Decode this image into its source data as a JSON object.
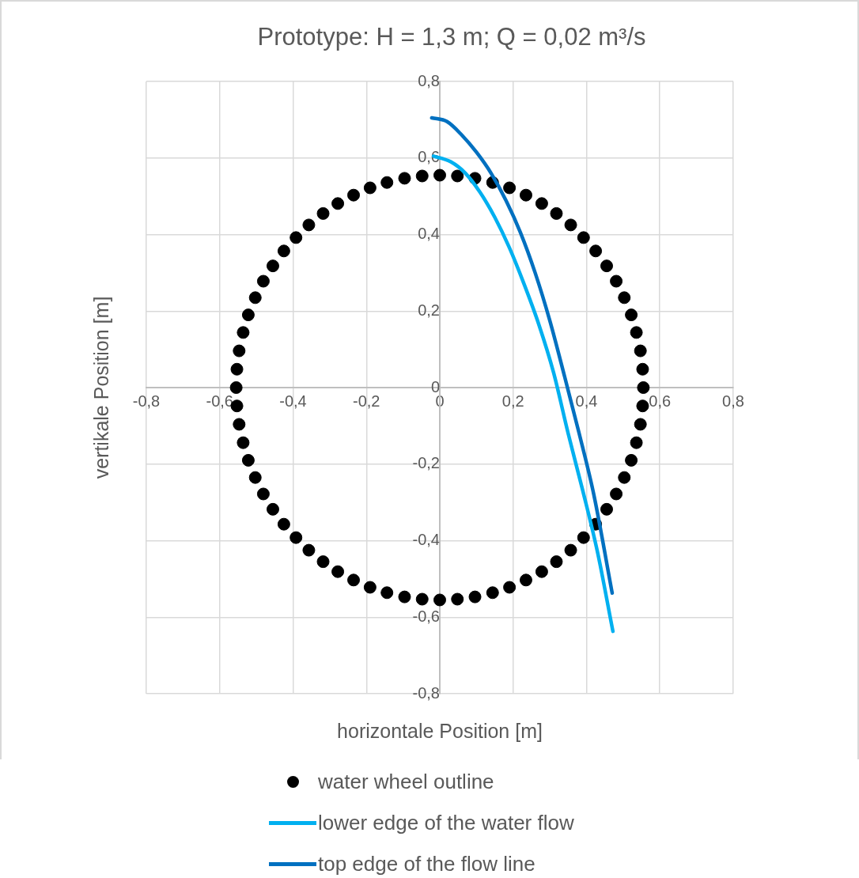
{
  "chart_data": {
    "type": "scatter",
    "title": "Prototype: H = 1,3 m; Q = 0,02 m³/s",
    "xlabel": "horizontale Position [m]",
    "ylabel": "vertikale Position [m]",
    "xlim": [
      -0.8,
      0.8
    ],
    "ylim": [
      -0.8,
      0.8
    ],
    "xticks": [
      {
        "value": -0.8,
        "label": "-0,8"
      },
      {
        "value": -0.6,
        "label": "-0,6"
      },
      {
        "value": -0.4,
        "label": "-0,4"
      },
      {
        "value": -0.2,
        "label": "-0,2"
      },
      0,
      {
        "value": 0.2,
        "label": "0,2"
      },
      {
        "value": 0.4,
        "label": "0,4"
      },
      {
        "value": 0.6,
        "label": "0,6"
      },
      {
        "value": 0.8,
        "label": "0,8"
      }
    ],
    "yticks": [
      {
        "value": -0.8,
        "label": "-0,8"
      },
      {
        "value": -0.6,
        "label": "-0,6"
      },
      {
        "value": -0.4,
        "label": "-0,4"
      },
      {
        "value": -0.2,
        "label": "-0,2"
      },
      0,
      {
        "value": 0.2,
        "label": "0,2"
      },
      {
        "value": 0.4,
        "label": "0,4"
      },
      {
        "value": 0.6,
        "label": "0,6"
      },
      {
        "value": 0.8,
        "label": "0,8"
      }
    ],
    "grid": true,
    "legend": "bottom",
    "series": [
      {
        "name": "water wheel outline",
        "type": "scatter",
        "marker": "circle",
        "color": "#000000",
        "x": [
          0.555,
          0.553,
          0.547,
          0.536,
          0.522,
          0.503,
          0.481,
          0.455,
          0.425,
          0.392,
          0.357,
          0.318,
          0.278,
          0.235,
          0.19,
          0.144,
          0.096,
          0.048,
          0,
          -0.048,
          -0.096,
          -0.144,
          -0.19,
          -0.235,
          -0.278,
          -0.318,
          -0.357,
          -0.392,
          -0.425,
          -0.455,
          -0.481,
          -0.503,
          -0.522,
          -0.536,
          -0.547,
          -0.553,
          -0.555,
          -0.553,
          -0.547,
          -0.536,
          -0.522,
          -0.503,
          -0.481,
          -0.455,
          -0.425,
          -0.392,
          -0.357,
          -0.318,
          -0.278,
          -0.235,
          -0.19,
          -0.144,
          -0.096,
          -0.048,
          0,
          0.048,
          0.096,
          0.144,
          0.19,
          0.235,
          0.278,
          0.318,
          0.357,
          0.392,
          0.425,
          0.455,
          0.481,
          0.503,
          0.522,
          0.536,
          0.547,
          0.553
        ],
        "values": [
          0,
          0.048,
          0.096,
          0.144,
          0.19,
          0.235,
          0.278,
          0.318,
          0.357,
          0.392,
          0.425,
          0.455,
          0.481,
          0.503,
          0.522,
          0.536,
          0.547,
          0.553,
          0.555,
          0.553,
          0.547,
          0.536,
          0.522,
          0.503,
          0.481,
          0.455,
          0.425,
          0.392,
          0.357,
          0.318,
          0.278,
          0.235,
          0.19,
          0.144,
          0.096,
          0.048,
          0,
          -0.048,
          -0.096,
          -0.144,
          -0.19,
          -0.235,
          -0.278,
          -0.318,
          -0.357,
          -0.392,
          -0.425,
          -0.455,
          -0.481,
          -0.503,
          -0.522,
          -0.536,
          -0.547,
          -0.553,
          -0.555,
          -0.553,
          -0.547,
          -0.536,
          -0.522,
          -0.503,
          -0.481,
          -0.455,
          -0.425,
          -0.392,
          -0.357,
          -0.318,
          -0.278,
          -0.235,
          -0.19,
          -0.144,
          -0.096,
          -0.048
        ]
      },
      {
        "name": "lower edge of the water flow",
        "type": "line",
        "marker": "none",
        "line_style": "solid",
        "color": "#00b0f0",
        "x": [
          -0.017,
          0.03,
          0.07,
          0.11,
          0.15,
          0.19,
          0.23,
          0.27,
          0.31,
          0.35,
          0.39,
          0.43,
          0.472
        ],
        "values": [
          0.605,
          0.59,
          0.56,
          0.51,
          0.445,
          0.365,
          0.27,
          0.165,
          0.04,
          -0.12,
          -0.27,
          -0.43,
          -0.637
        ]
      },
      {
        "name": "top edge of the flow line",
        "type": "line",
        "marker": "none",
        "line_style": "solid",
        "color": "#0070c0",
        "x": [
          -0.022,
          0.02,
          0.06,
          0.1,
          0.14,
          0.18,
          0.22,
          0.26,
          0.3,
          0.34,
          0.38,
          0.42,
          0.47
        ],
        "values": [
          0.705,
          0.695,
          0.66,
          0.615,
          0.56,
          0.49,
          0.405,
          0.3,
          0.175,
          0.03,
          -0.12,
          -0.28,
          -0.537
        ]
      }
    ]
  }
}
